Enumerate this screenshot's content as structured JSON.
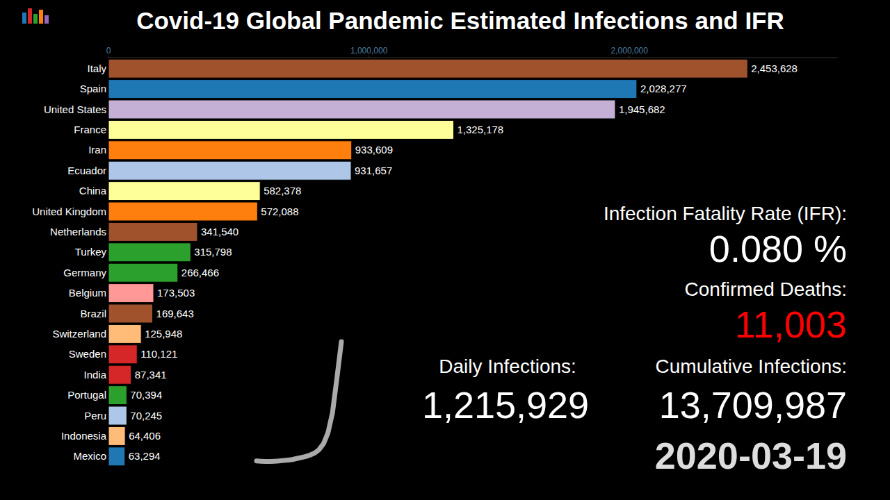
{
  "chart_data": [
    {
      "type": "bar",
      "orientation": "horizontal",
      "title": "Covid-19 Global Pandemic Estimated Infections and IFR",
      "categories": [
        "Italy",
        "Spain",
        "United States",
        "France",
        "Iran",
        "Ecuador",
        "China",
        "United Kingdom",
        "Netherlands",
        "Turkey",
        "Germany",
        "Belgium",
        "Brazil",
        "Switzerland",
        "Sweden",
        "India",
        "Portugal",
        "Peru",
        "Indonesia",
        "Mexico"
      ],
      "values": [
        2453628,
        2028277,
        1945682,
        1325178,
        933609,
        931657,
        582378,
        572088,
        341540,
        315798,
        266466,
        173503,
        169643,
        125948,
        110121,
        87341,
        70394,
        70245,
        64406,
        63294
      ],
      "value_labels": [
        "2,453,628",
        "2,028,277",
        "1,945,682",
        "1,325,178",
        "933,609",
        "931,657",
        "582,378",
        "572,088",
        "341,540",
        "315,798",
        "266,466",
        "173,503",
        "169,643",
        "125,948",
        "110,121",
        "87,341",
        "70,394",
        "70,245",
        "64,406",
        "63,294"
      ],
      "colors": [
        "#a0522d",
        "#1f77b4",
        "#c5b0d5",
        "#ffff99",
        "#ff7f0e",
        "#aec7e8",
        "#ffff99",
        "#ff7f0e",
        "#a0522d",
        "#2ca02c",
        "#2ca02c",
        "#ff9896",
        "#a0522d",
        "#ffbb78",
        "#d62728",
        "#d62728",
        "#2ca02c",
        "#aec7e8",
        "#ffbb78",
        "#1f77b4"
      ],
      "xlim": [
        0,
        2800000
      ],
      "xticks": [
        0,
        {
          "value": 1000000,
          "label": "1,000,000"
        },
        {
          "value": 2000000,
          "label": "2,000,000"
        }
      ],
      "grid": false,
      "data_labels": true,
      "annotations": [
        "Infection Fatality Rate (IFR):",
        "0.080 %",
        "Confirmed Deaths:",
        "11,003",
        "Daily Infections:",
        "1,215,929",
        "Cumulative Infections:",
        "13,709,987",
        "2020-03-19"
      ]
    },
    {
      "type": "line",
      "x": [
        1,
        2,
        3,
        4,
        5,
        6,
        7,
        8,
        9,
        10,
        11,
        12,
        13,
        14,
        15,
        16,
        17,
        18,
        19,
        20
      ],
      "values": [
        15000,
        12000,
        10000,
        10000,
        12000,
        15000,
        20000,
        25000,
        30000,
        40000,
        50000,
        60000,
        75000,
        95000,
        130000,
        190000,
        300000,
        500000,
        850000,
        1215929
      ],
      "xlim": [
        1,
        20
      ],
      "ylim": [
        0,
        1215929
      ],
      "color": "#aaaaaa",
      "tick_labels": false,
      "grid": false
    }
  ]
}
